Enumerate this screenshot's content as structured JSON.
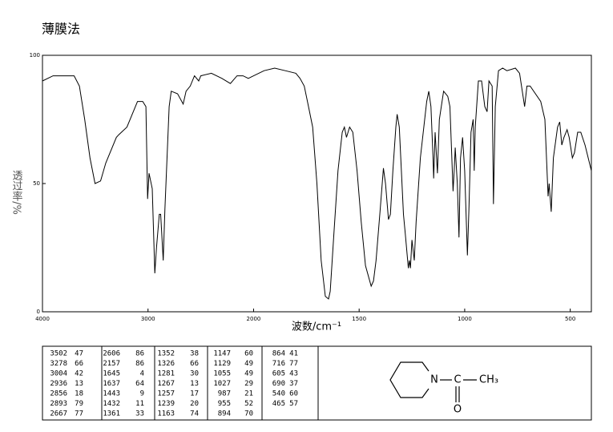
{
  "header": {
    "title": "薄膜法"
  },
  "chart_data": {
    "type": "line",
    "x_label": "波数/cm⁻¹",
    "y_label": "透过率/%",
    "color": "#000000",
    "xlim": [
      4000,
      400
    ],
    "x_scale_change_at": 2000,
    "xticks": [
      4000,
      3000,
      2000,
      1500,
      1000,
      500
    ],
    "ylim": [
      0,
      100
    ],
    "yticks": [
      0,
      50,
      100
    ],
    "x": [
      4000,
      3900,
      3700,
      3650,
      3600,
      3550,
      3502,
      3450,
      3400,
      3300,
      3278,
      3200,
      3100,
      3050,
      3020,
      3004,
      2990,
      2960,
      2936,
      2920,
      2893,
      2880,
      2856,
      2840,
      2800,
      2780,
      2720,
      2667,
      2640,
      2600,
      2560,
      2520,
      2500,
      2400,
      2300,
      2220,
      2157,
      2100,
      2050,
      2000,
      1950,
      1900,
      1850,
      1800,
      1780,
      1760,
      1740,
      1720,
      1700,
      1680,
      1660,
      1645,
      1637,
      1620,
      1600,
      1580,
      1570,
      1560,
      1545,
      1530,
      1510,
      1490,
      1470,
      1443,
      1432,
      1420,
      1400,
      1385,
      1375,
      1361,
      1352,
      1340,
      1326,
      1320,
      1310,
      1300,
      1290,
      1281,
      1267,
      1262,
      1257,
      1250,
      1239,
      1230,
      1210,
      1180,
      1170,
      1160,
      1150,
      1147,
      1140,
      1129,
      1120,
      1100,
      1080,
      1070,
      1055,
      1050,
      1045,
      1035,
      1027,
      1020,
      1010,
      1000,
      987,
      980,
      970,
      960,
      955,
      950,
      935,
      920,
      905,
      894,
      885,
      870,
      864,
      855,
      840,
      820,
      800,
      760,
      740,
      716,
      705,
      690,
      640,
      620,
      605,
      600,
      590,
      580,
      560,
      550,
      540,
      530,
      515,
      505,
      490,
      480,
      465,
      450,
      430,
      400
    ],
    "values": [
      90,
      92,
      92,
      88,
      75,
      60,
      50,
      51,
      58,
      68,
      69,
      72,
      82,
      82,
      80,
      44,
      54,
      48,
      15,
      25,
      38,
      38,
      20,
      40,
      80,
      86,
      85,
      81,
      86,
      88,
      92,
      90,
      92,
      93,
      91,
      89,
      92,
      92,
      91,
      92,
      94,
      95,
      94,
      93,
      91,
      88,
      80,
      72,
      50,
      20,
      6,
      5,
      8,
      30,
      55,
      70,
      72,
      68,
      72,
      70,
      55,
      35,
      18,
      10,
      12,
      20,
      40,
      56,
      50,
      36,
      38,
      55,
      72,
      77,
      72,
      55,
      38,
      30,
      17,
      20,
      17,
      28,
      20,
      35,
      60,
      82,
      86,
      80,
      60,
      52,
      70,
      54,
      75,
      86,
      84,
      80,
      47,
      55,
      64,
      50,
      29,
      60,
      68,
      55,
      22,
      40,
      70,
      75,
      55,
      72,
      90,
      90,
      80,
      78,
      90,
      88,
      42,
      80,
      94,
      95,
      94,
      95,
      93,
      80,
      88,
      88,
      82,
      75,
      45,
      50,
      39,
      60,
      72,
      74,
      65,
      68,
      71,
      68,
      60,
      62,
      70,
      70,
      65,
      55
    ]
  },
  "peak_table": {
    "columns": [
      [
        [
          3502,
          47
        ],
        [
          3278,
          66
        ],
        [
          3004,
          42
        ],
        [
          2936,
          13
        ],
        [
          2856,
          18
        ],
        [
          2893,
          79
        ],
        [
          2667,
          77
        ]
      ],
      [
        [
          2606,
          86
        ],
        [
          2157,
          86
        ],
        [
          1645,
          4
        ],
        [
          1637,
          64
        ],
        [
          1443,
          9
        ],
        [
          1432,
          11
        ],
        [
          1361,
          33
        ]
      ],
      [
        [
          1352,
          38
        ],
        [
          1326,
          66
        ],
        [
          1281,
          30
        ],
        [
          1267,
          13
        ],
        [
          1257,
          17
        ],
        [
          1239,
          20
        ],
        [
          1163,
          74
        ]
      ],
      [
        [
          1147,
          60
        ],
        [
          1129,
          49
        ],
        [
          1055,
          49
        ],
        [
          1027,
          29
        ],
        [
          987,
          21
        ],
        [
          955,
          52
        ],
        [
          894,
          70
        ]
      ],
      [
        [
          864,
          41
        ],
        [
          716,
          77
        ],
        [
          605,
          43
        ],
        [
          690,
          37
        ],
        [
          540,
          60
        ],
        [
          465,
          57
        ]
      ]
    ]
  },
  "structure": {
    "atoms": [
      "N",
      "C",
      "O",
      "CH₃"
    ]
  }
}
